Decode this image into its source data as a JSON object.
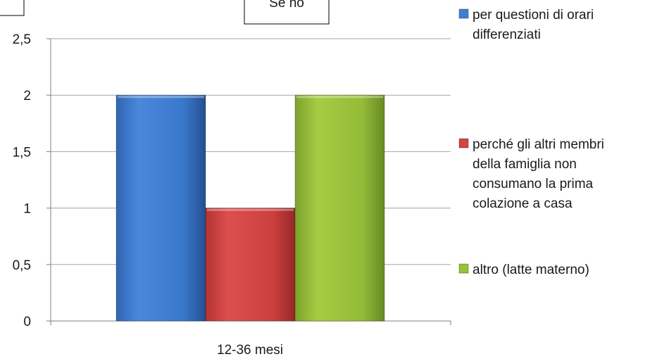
{
  "chart_data": {
    "type": "bar",
    "title": "Se no",
    "categories": [
      "12-36 mesi"
    ],
    "series": [
      {
        "name": "per questioni di orari differenziati",
        "values": [
          2
        ],
        "color": "#3f7fd4"
      },
      {
        "name": "perché gli altri membri della famiglia non consumano la prima colazione a casa",
        "values": [
          1
        ],
        "color": "#d24444"
      },
      {
        "name": "altro (latte materno)",
        "values": [
          2
        ],
        "color": "#98c23a"
      }
    ],
    "ylim": [
      0,
      2.5
    ],
    "yticks": [
      "0",
      "0,5",
      "1",
      "1,5",
      "2",
      "2,5"
    ],
    "grid": true,
    "legend_position": "right"
  },
  "legend_lines": [
    [
      "per questioni di orari",
      "differenziati"
    ],
    [
      "perché gli altri membri",
      "della famiglia non",
      "consumano la prima",
      "colazione a casa"
    ],
    [
      "altro (latte materno)"
    ]
  ]
}
